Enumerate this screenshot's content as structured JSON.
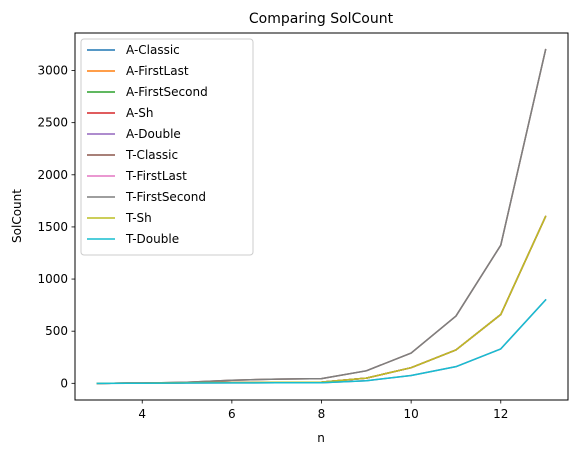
{
  "chart_data": {
    "type": "line",
    "title": "Comparing SolCount",
    "xlabel": "n",
    "ylabel": "SolCount",
    "xlim": [
      2.5,
      13.5
    ],
    "ylim": [
      -160,
      3360
    ],
    "xticks": [
      4,
      6,
      8,
      10,
      12
    ],
    "yticks": [
      0,
      500,
      1000,
      1500,
      2000,
      2500,
      3000
    ],
    "grid": false,
    "legend_position": "top-left",
    "x": [
      3,
      4,
      5,
      6,
      7,
      8,
      9,
      10,
      11,
      12,
      13
    ],
    "series": [
      {
        "name": "A-Classic",
        "color": "#1f77b4",
        "values": [
          0,
          2,
          5,
          8,
          10,
          12,
          50,
          150,
          320,
          660,
          1600
        ]
      },
      {
        "name": "A-FirstLast",
        "color": "#ff7f0e",
        "values": [
          0,
          2,
          5,
          8,
          10,
          12,
          50,
          150,
          320,
          660,
          1600
        ]
      },
      {
        "name": "A-FirstSecond",
        "color": "#2ca02c",
        "values": [
          0,
          2,
          5,
          8,
          10,
          12,
          50,
          150,
          320,
          660,
          1600
        ]
      },
      {
        "name": "A-Sh",
        "color": "#d62728",
        "values": [
          0,
          2,
          5,
          8,
          10,
          12,
          50,
          150,
          320,
          660,
          1600
        ]
      },
      {
        "name": "A-Double",
        "color": "#9467bd",
        "values": [
          0,
          1,
          3,
          4,
          5,
          6,
          25,
          75,
          160,
          330,
          800
        ]
      },
      {
        "name": "T-Classic",
        "color": "#8c564b",
        "values": [
          0,
          2,
          10,
          30,
          40,
          45,
          120,
          290,
          645,
          1325,
          3200
        ]
      },
      {
        "name": "T-FirstLast",
        "color": "#e377c2",
        "values": [
          0,
          2,
          5,
          8,
          10,
          12,
          50,
          150,
          320,
          660,
          1600
        ]
      },
      {
        "name": "T-FirstSecond",
        "color": "#7f7f7f",
        "values": [
          0,
          2,
          10,
          30,
          40,
          45,
          120,
          290,
          645,
          1325,
          3200
        ]
      },
      {
        "name": "T-Sh",
        "color": "#bcbd22",
        "values": [
          0,
          2,
          5,
          8,
          10,
          12,
          50,
          150,
          320,
          660,
          1600
        ]
      },
      {
        "name": "T-Double",
        "color": "#17becf",
        "values": [
          0,
          1,
          3,
          4,
          5,
          6,
          25,
          75,
          160,
          330,
          800
        ]
      }
    ]
  }
}
